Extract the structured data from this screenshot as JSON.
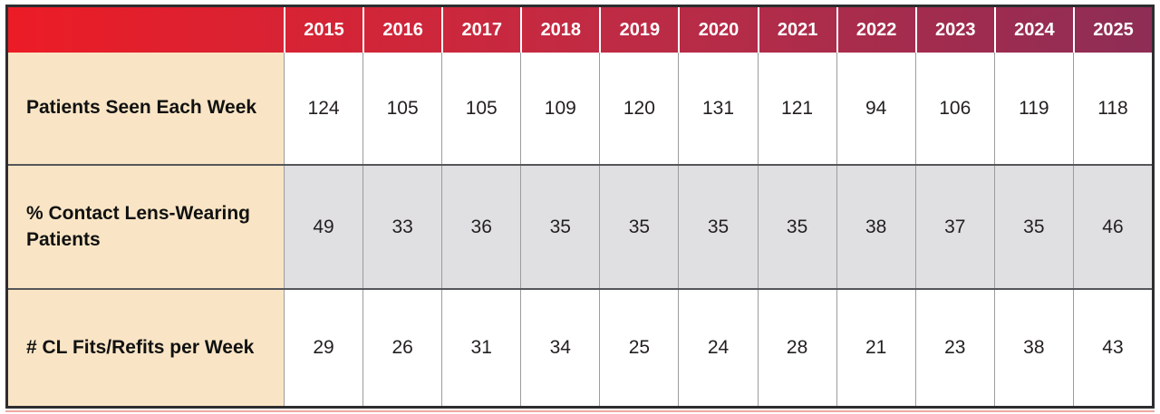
{
  "chart_data": {
    "type": "table",
    "columns": [
      "2015",
      "2016",
      "2017",
      "2018",
      "2019",
      "2020",
      "2021",
      "2022",
      "2023",
      "2024",
      "2025"
    ],
    "rows": [
      {
        "label": "Patients Seen Each Week",
        "values": [
          124,
          105,
          105,
          109,
          120,
          131,
          121,
          94,
          106,
          119,
          118
        ]
      },
      {
        "label": "% Contact Lens-Wearing Patients",
        "values": [
          49,
          33,
          36,
          35,
          35,
          35,
          35,
          38,
          37,
          35,
          46
        ]
      },
      {
        "label": "# CL Fits/Refits per Week",
        "values": [
          29,
          26,
          31,
          34,
          25,
          24,
          28,
          21,
          23,
          38,
          43
        ]
      }
    ],
    "layout_hints": {
      "header_style": "gradient red-to-maroon with white bold year text",
      "label_column_background": "cream",
      "alternating_row_backgrounds": [
        "white",
        "light-gray",
        "white"
      ],
      "grid": "on"
    }
  },
  "colors": {
    "header_gradient_left": "#ec1c26",
    "header_gradient_mid": "#c02b44",
    "header_gradient_right": "#8e2d55",
    "label_column_background": "#f9e5c5",
    "gray_row_background": "#e0e0e2",
    "outer_border": "#2d2d2f",
    "cell_divider": "#9c9c9c",
    "row_divider": "#55565a",
    "bottom_accent_line": "#f0a8a2",
    "header_text": "#ffffff",
    "body_text": "#231f20"
  }
}
